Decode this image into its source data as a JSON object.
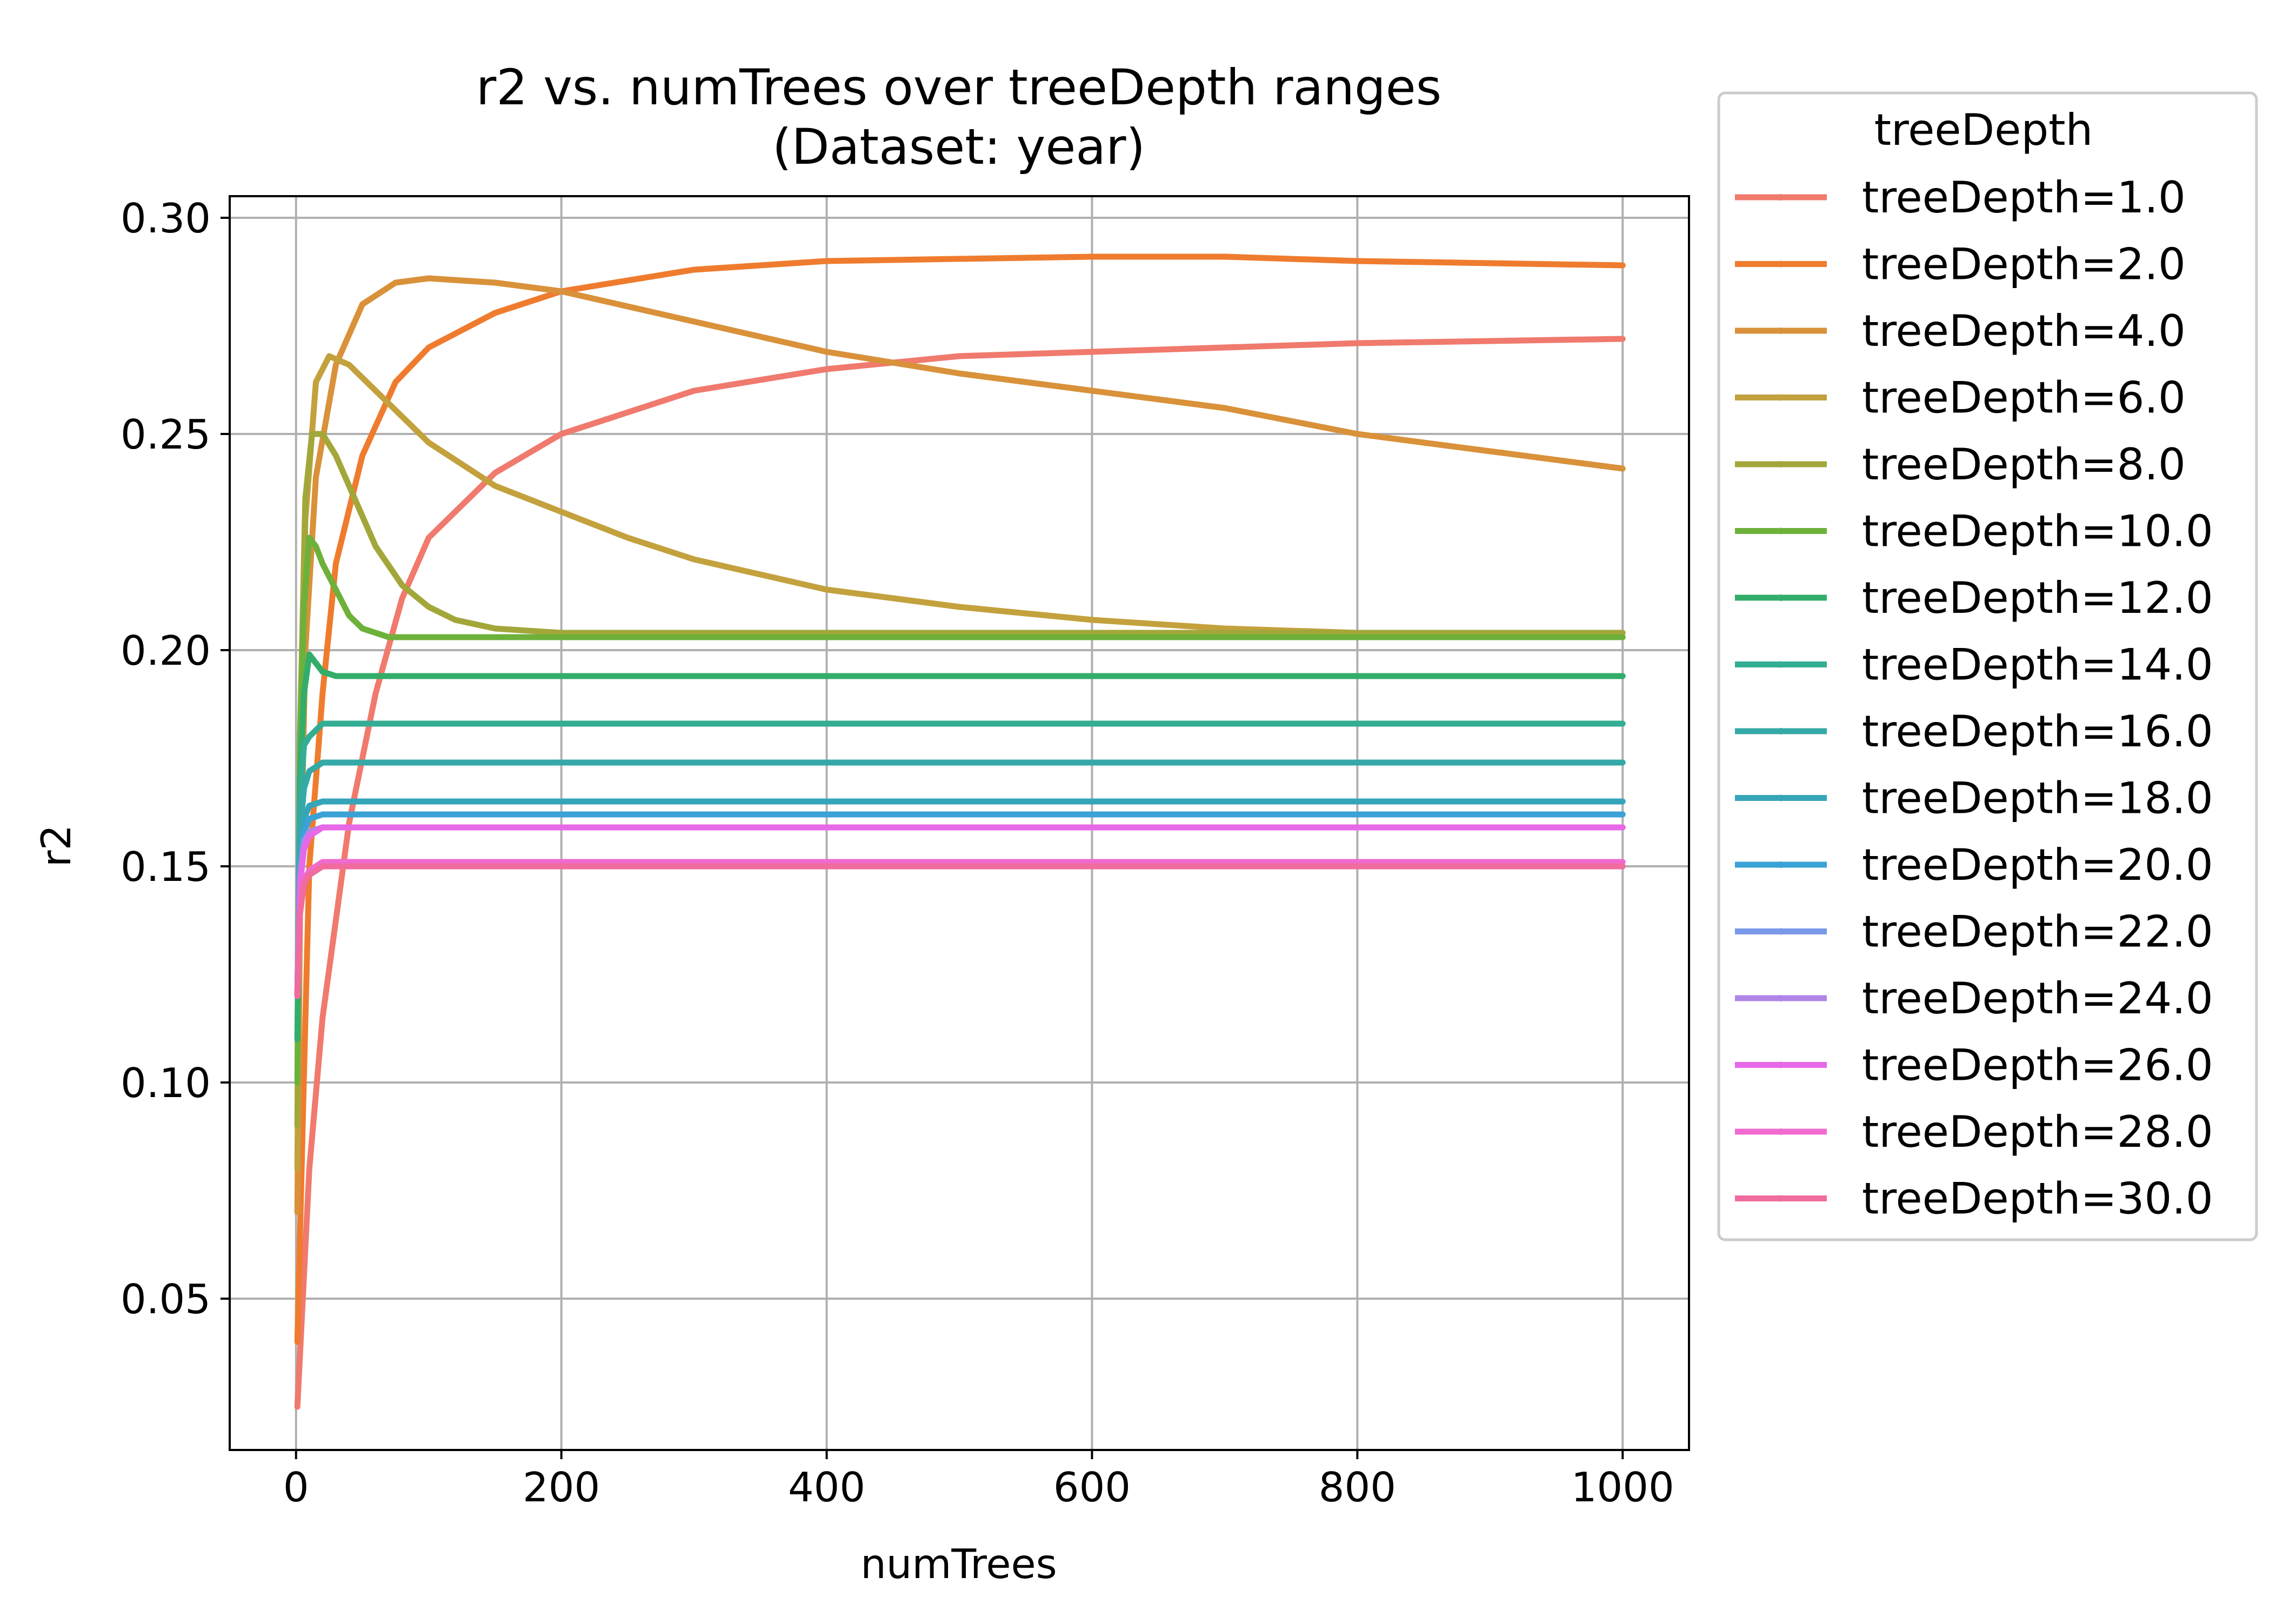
{
  "chart_data": {
    "type": "line",
    "title": "r2 vs. numTrees over treeDepth ranges",
    "subtitle": "(Dataset: year)",
    "xlabel": "numTrees",
    "ylabel": "r2",
    "xlim": [
      -50,
      1050
    ],
    "ylim": [
      0.015,
      0.305
    ],
    "xticks": [
      0,
      200,
      400,
      600,
      800,
      1000
    ],
    "xtick_labels": [
      "0",
      "200",
      "400",
      "600",
      "800",
      "1000"
    ],
    "yticks": [
      0.05,
      0.1,
      0.15,
      0.2,
      0.25,
      0.3
    ],
    "ytick_labels": [
      "0.05",
      "0.10",
      "0.15",
      "0.20",
      "0.25",
      "0.30"
    ],
    "grid": true,
    "legend": {
      "title": "treeDepth",
      "placement": "outside-right"
    },
    "series": [
      {
        "name": "treeDepth=1.0",
        "color": "#f07a6d",
        "x": [
          1,
          10,
          20,
          40,
          60,
          80,
          100,
          150,
          200,
          300,
          400,
          500,
          600,
          800,
          1000
        ],
        "y": [
          0.025,
          0.08,
          0.115,
          0.16,
          0.19,
          0.212,
          0.226,
          0.241,
          0.25,
          0.26,
          0.265,
          0.268,
          0.269,
          0.271,
          0.272
        ]
      },
      {
        "name": "treeDepth=2.0",
        "color": "#ef7c2e",
        "x": [
          1,
          5,
          10,
          20,
          30,
          50,
          75,
          100,
          150,
          200,
          300,
          400,
          600,
          700,
          800,
          1000
        ],
        "y": [
          0.04,
          0.09,
          0.15,
          0.19,
          0.22,
          0.245,
          0.262,
          0.27,
          0.278,
          0.283,
          0.288,
          0.29,
          0.291,
          0.291,
          0.29,
          0.289
        ]
      },
      {
        "name": "treeDepth=4.0",
        "color": "#d9913a",
        "x": [
          1,
          3,
          7,
          15,
          30,
          50,
          75,
          100,
          150,
          200,
          300,
          400,
          500,
          600,
          700,
          800,
          900,
          1000
        ],
        "y": [
          0.07,
          0.14,
          0.2,
          0.24,
          0.266,
          0.28,
          0.285,
          0.286,
          0.285,
          0.283,
          0.276,
          0.269,
          0.264,
          0.26,
          0.256,
          0.25,
          0.246,
          0.242
        ]
      },
      {
        "name": "treeDepth=6.0",
        "color": "#c3a13d",
        "x": [
          1,
          3,
          7,
          15,
          25,
          40,
          60,
          80,
          100,
          150,
          200,
          250,
          300,
          400,
          500,
          600,
          700,
          800,
          900,
          1000
        ],
        "y": [
          0.08,
          0.16,
          0.23,
          0.262,
          0.268,
          0.266,
          0.26,
          0.254,
          0.248,
          0.238,
          0.232,
          0.226,
          0.221,
          0.214,
          0.21,
          0.207,
          0.205,
          0.204,
          0.203,
          0.203
        ]
      },
      {
        "name": "treeDepth=8.0",
        "color": "#a3a73a",
        "x": [
          1,
          3,
          7,
          12,
          20,
          30,
          40,
          60,
          80,
          100,
          120,
          150,
          200,
          300,
          1000
        ],
        "y": [
          0.09,
          0.18,
          0.235,
          0.25,
          0.25,
          0.245,
          0.238,
          0.224,
          0.215,
          0.21,
          0.207,
          0.205,
          0.204,
          0.204,
          0.204
        ]
      },
      {
        "name": "treeDepth=10.0",
        "color": "#6db13b",
        "x": [
          1,
          3,
          6,
          10,
          15,
          20,
          30,
          40,
          50,
          70,
          100,
          150,
          1000
        ],
        "y": [
          0.1,
          0.18,
          0.21,
          0.226,
          0.224,
          0.22,
          0.214,
          0.208,
          0.205,
          0.203,
          0.203,
          0.203,
          0.203
        ]
      },
      {
        "name": "treeDepth=12.0",
        "color": "#33ad6a",
        "x": [
          1,
          3,
          6,
          10,
          15,
          20,
          30,
          50,
          1000
        ],
        "y": [
          0.11,
          0.17,
          0.19,
          0.199,
          0.197,
          0.195,
          0.194,
          0.194,
          0.194
        ]
      },
      {
        "name": "treeDepth=14.0",
        "color": "#33ad93",
        "x": [
          1,
          3,
          6,
          10,
          20,
          30,
          1000
        ],
        "y": [
          0.12,
          0.165,
          0.178,
          0.18,
          0.183,
          0.183,
          0.183
        ]
      },
      {
        "name": "treeDepth=16.0",
        "color": "#34a9a7",
        "x": [
          1,
          3,
          6,
          10,
          20,
          40,
          1000
        ],
        "y": [
          0.12,
          0.158,
          0.168,
          0.172,
          0.174,
          0.174,
          0.174
        ]
      },
      {
        "name": "treeDepth=18.0",
        "color": "#36a5ba",
        "x": [
          1,
          3,
          6,
          10,
          20,
          40,
          1000
        ],
        "y": [
          0.12,
          0.152,
          0.161,
          0.164,
          0.165,
          0.165,
          0.165
        ]
      },
      {
        "name": "treeDepth=20.0",
        "color": "#3ba2d6",
        "x": [
          1,
          3,
          6,
          10,
          20,
          40,
          1000
        ],
        "y": [
          0.12,
          0.15,
          0.158,
          0.161,
          0.162,
          0.162,
          0.162
        ]
      },
      {
        "name": "treeDepth=22.0",
        "color": "#7a97e8",
        "x": [
          1,
          3,
          6,
          10,
          20,
          40,
          1000
        ],
        "y": [
          0.12,
          0.148,
          0.156,
          0.158,
          0.159,
          0.159,
          0.159
        ]
      },
      {
        "name": "treeDepth=24.0",
        "color": "#b085e8",
        "x": [
          1,
          3,
          6,
          10,
          20,
          40,
          1000
        ],
        "y": [
          0.12,
          0.147,
          0.155,
          0.158,
          0.159,
          0.159,
          0.159
        ]
      },
      {
        "name": "treeDepth=26.0",
        "color": "#e768e8",
        "x": [
          1,
          3,
          6,
          10,
          20,
          40,
          1000
        ],
        "y": [
          0.12,
          0.146,
          0.154,
          0.157,
          0.159,
          0.159,
          0.159
        ]
      },
      {
        "name": "treeDepth=28.0",
        "color": "#f06bd0",
        "x": [
          1,
          3,
          6,
          10,
          20,
          40,
          1000
        ],
        "y": [
          0.12,
          0.14,
          0.147,
          0.149,
          0.151,
          0.151,
          0.151
        ]
      },
      {
        "name": "treeDepth=30.0",
        "color": "#f06b9e",
        "x": [
          1,
          3,
          6,
          10,
          20,
          40,
          1000
        ],
        "y": [
          0.12,
          0.139,
          0.146,
          0.148,
          0.15,
          0.15,
          0.15
        ]
      }
    ]
  }
}
